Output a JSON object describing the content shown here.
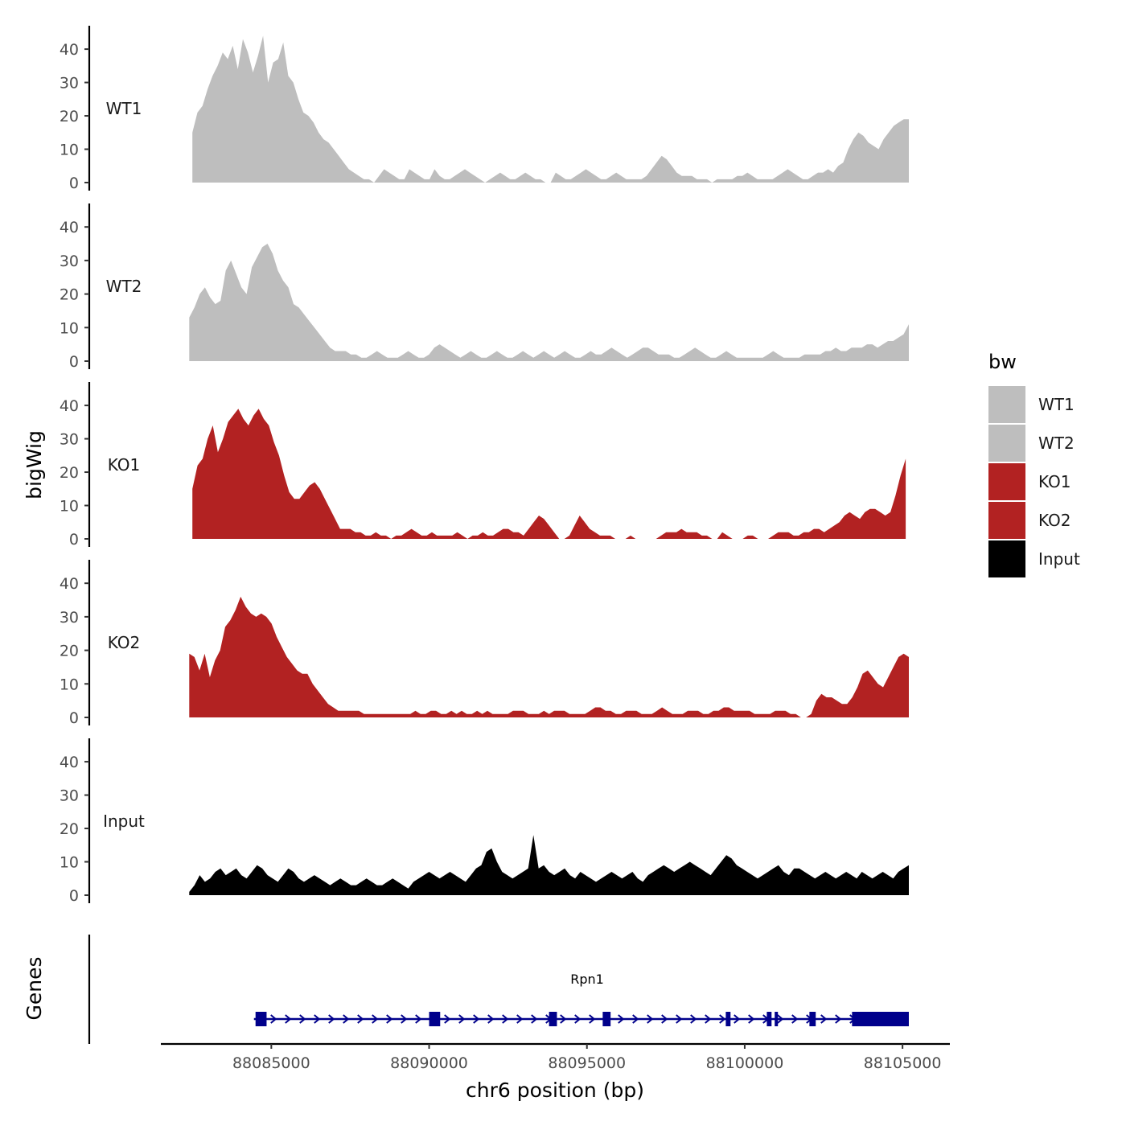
{
  "chart_data": {
    "type": "area",
    "chromosome": "chr6",
    "xlabel": "chr6 position (bp)",
    "ylabel": "bigWig",
    "gene_panel_label": "Genes",
    "xlim": [
      88081500,
      88106500
    ],
    "x_ticks": [
      88085000,
      88090000,
      88095000,
      88100000,
      88105000
    ],
    "ylim": [
      0,
      45
    ],
    "y_ticks": [
      0,
      10,
      20,
      30,
      40
    ],
    "region": [
      88082500,
      88105200
    ],
    "legend": {
      "title": "bw",
      "entries": [
        {
          "label": "WT1",
          "color": "#bebebe"
        },
        {
          "label": "WT2",
          "color": "#bebebe"
        },
        {
          "label": "KO1",
          "color": "#b22222"
        },
        {
          "label": "KO2",
          "color": "#b22222"
        },
        {
          "label": "Input",
          "color": "#000000"
        }
      ]
    },
    "series": [
      {
        "name": "WT1",
        "color": "#bebebe",
        "start": 88082500,
        "end": 88105200,
        "values": [
          15,
          21,
          23,
          28,
          32,
          35,
          39,
          37,
          41,
          34,
          43,
          39,
          33,
          38,
          44,
          30,
          36,
          37,
          42,
          32,
          30,
          25,
          21,
          20,
          18,
          15,
          13,
          12,
          10,
          8,
          6,
          4,
          3,
          2,
          1,
          1,
          0,
          2,
          4,
          3,
          2,
          1,
          1,
          4,
          3,
          2,
          1,
          1,
          4,
          2,
          1,
          1,
          2,
          3,
          4,
          3,
          2,
          1,
          0,
          1,
          2,
          3,
          2,
          1,
          1,
          2,
          3,
          2,
          1,
          1,
          0,
          0,
          3,
          2,
          1,
          1,
          2,
          3,
          4,
          3,
          2,
          1,
          1,
          2,
          3,
          2,
          1,
          1,
          1,
          1,
          2,
          4,
          6,
          8,
          7,
          5,
          3,
          2,
          2,
          2,
          1,
          1,
          1,
          0,
          1,
          1,
          1,
          1,
          2,
          2,
          3,
          2,
          1,
          1,
          1,
          1,
          2,
          3,
          4,
          3,
          2,
          1,
          1,
          2,
          3,
          3,
          4,
          3,
          5,
          6,
          10,
          13,
          15,
          14,
          12,
          11,
          10,
          13,
          15,
          17,
          18,
          19,
          19
        ]
      },
      {
        "name": "WT2",
        "color": "#bebebe",
        "start": 88082400,
        "end": 88105200,
        "values": [
          13,
          16,
          20,
          22,
          19,
          17,
          18,
          27,
          30,
          26,
          22,
          20,
          28,
          31,
          34,
          35,
          32,
          27,
          24,
          22,
          17,
          16,
          14,
          12,
          10,
          8,
          6,
          4,
          3,
          3,
          3,
          2,
          2,
          1,
          1,
          2,
          3,
          2,
          1,
          1,
          1,
          2,
          3,
          2,
          1,
          1,
          2,
          4,
          5,
          4,
          3,
          2,
          1,
          2,
          3,
          2,
          1,
          1,
          2,
          3,
          2,
          1,
          1,
          2,
          3,
          2,
          1,
          2,
          3,
          2,
          1,
          2,
          3,
          2,
          1,
          1,
          2,
          3,
          2,
          2,
          3,
          4,
          3,
          2,
          1,
          2,
          3,
          4,
          4,
          3,
          2,
          2,
          2,
          1,
          1,
          2,
          3,
          4,
          3,
          2,
          1,
          1,
          2,
          3,
          2,
          1,
          1,
          1,
          1,
          1,
          1,
          2,
          3,
          2,
          1,
          1,
          1,
          1,
          2,
          2,
          2,
          2,
          3,
          3,
          4,
          3,
          3,
          4,
          4,
          4,
          5,
          5,
          4,
          5,
          6,
          6,
          7,
          8,
          11
        ]
      },
      {
        "name": "KO1",
        "color": "#b22222",
        "start": 88082500,
        "end": 88105100,
        "values": [
          15,
          22,
          24,
          30,
          34,
          26,
          30,
          35,
          37,
          39,
          36,
          34,
          37,
          39,
          36,
          34,
          29,
          25,
          19,
          14,
          12,
          12,
          14,
          16,
          17,
          15,
          12,
          9,
          6,
          3,
          3,
          3,
          2,
          2,
          1,
          1,
          2,
          1,
          1,
          0,
          1,
          1,
          2,
          3,
          2,
          1,
          1,
          2,
          1,
          1,
          1,
          1,
          2,
          1,
          0,
          1,
          1,
          2,
          1,
          1,
          2,
          3,
          3,
          2,
          2,
          1,
          3,
          5,
          7,
          6,
          4,
          2,
          0,
          0,
          1,
          4,
          7,
          5,
          3,
          2,
          1,
          1,
          1,
          0,
          0,
          0,
          1,
          0,
          0,
          0,
          0,
          0,
          1,
          2,
          2,
          2,
          3,
          2,
          2,
          2,
          1,
          1,
          0,
          0,
          2,
          1,
          0,
          0,
          0,
          1,
          1,
          0,
          0,
          0,
          1,
          2,
          2,
          2,
          1,
          1,
          2,
          2,
          3,
          3,
          2,
          3,
          4,
          5,
          7,
          8,
          7,
          6,
          8,
          9,
          9,
          8,
          7,
          8,
          13,
          19,
          24
        ]
      },
      {
        "name": "KO2",
        "color": "#b22222",
        "start": 88082400,
        "end": 88105200,
        "values": [
          19,
          18,
          14,
          19,
          12,
          17,
          20,
          27,
          29,
          32,
          36,
          33,
          31,
          30,
          31,
          30,
          28,
          24,
          21,
          18,
          16,
          14,
          13,
          13,
          10,
          8,
          6,
          4,
          3,
          2,
          2,
          2,
          2,
          2,
          1,
          1,
          1,
          1,
          1,
          1,
          1,
          1,
          1,
          1,
          2,
          1,
          1,
          2,
          2,
          1,
          1,
          2,
          1,
          2,
          1,
          1,
          2,
          1,
          2,
          1,
          1,
          1,
          1,
          2,
          2,
          2,
          1,
          1,
          1,
          2,
          1,
          2,
          2,
          2,
          1,
          1,
          1,
          1,
          2,
          3,
          3,
          2,
          2,
          1,
          1,
          2,
          2,
          2,
          1,
          1,
          1,
          2,
          3,
          2,
          1,
          1,
          1,
          2,
          2,
          2,
          1,
          1,
          2,
          2,
          3,
          3,
          2,
          2,
          2,
          2,
          1,
          1,
          1,
          1,
          2,
          2,
          2,
          1,
          1,
          0,
          0,
          1,
          5,
          7,
          6,
          6,
          5,
          4,
          4,
          6,
          9,
          13,
          14,
          12,
          10,
          9,
          12,
          15,
          18,
          19,
          18
        ]
      },
      {
        "name": "Input",
        "color": "#000000",
        "start": 88082400,
        "end": 88105200,
        "values": [
          1,
          3,
          6,
          4,
          5,
          7,
          8,
          6,
          7,
          8,
          6,
          5,
          7,
          9,
          8,
          6,
          5,
          4,
          6,
          8,
          7,
          5,
          4,
          5,
          6,
          5,
          4,
          3,
          4,
          5,
          4,
          3,
          3,
          4,
          5,
          4,
          3,
          3,
          4,
          5,
          4,
          3,
          2,
          4,
          5,
          6,
          7,
          6,
          5,
          6,
          7,
          6,
          5,
          4,
          6,
          8,
          9,
          13,
          14,
          10,
          7,
          6,
          5,
          6,
          7,
          8,
          18,
          8,
          9,
          7,
          6,
          7,
          8,
          6,
          5,
          7,
          6,
          5,
          4,
          5,
          6,
          7,
          6,
          5,
          6,
          7,
          5,
          4,
          6,
          7,
          8,
          9,
          8,
          7,
          8,
          9,
          10,
          9,
          8,
          7,
          6,
          8,
          10,
          12,
          11,
          9,
          8,
          7,
          6,
          5,
          6,
          7,
          8,
          9,
          7,
          6,
          8,
          8,
          7,
          6,
          5,
          6,
          7,
          6,
          5,
          6,
          7,
          6,
          5,
          7,
          6,
          5,
          6,
          7,
          6,
          5,
          7,
          8,
          9
        ]
      }
    ],
    "gene": {
      "name": "Rpn1",
      "strand": "+",
      "start": 88084450,
      "end": 88105200,
      "exons": [
        {
          "start": 88084500,
          "end": 88084850
        },
        {
          "start": 88090000,
          "end": 88090350
        },
        {
          "start": 88093800,
          "end": 88094050
        },
        {
          "start": 88095500,
          "end": 88095750
        },
        {
          "start": 88099400,
          "end": 88099550
        },
        {
          "start": 88100700,
          "end": 88100850
        },
        {
          "start": 88100950,
          "end": 88101050
        },
        {
          "start": 88102050,
          "end": 88102250
        },
        {
          "start": 88103400,
          "end": 88105200
        }
      ]
    }
  }
}
